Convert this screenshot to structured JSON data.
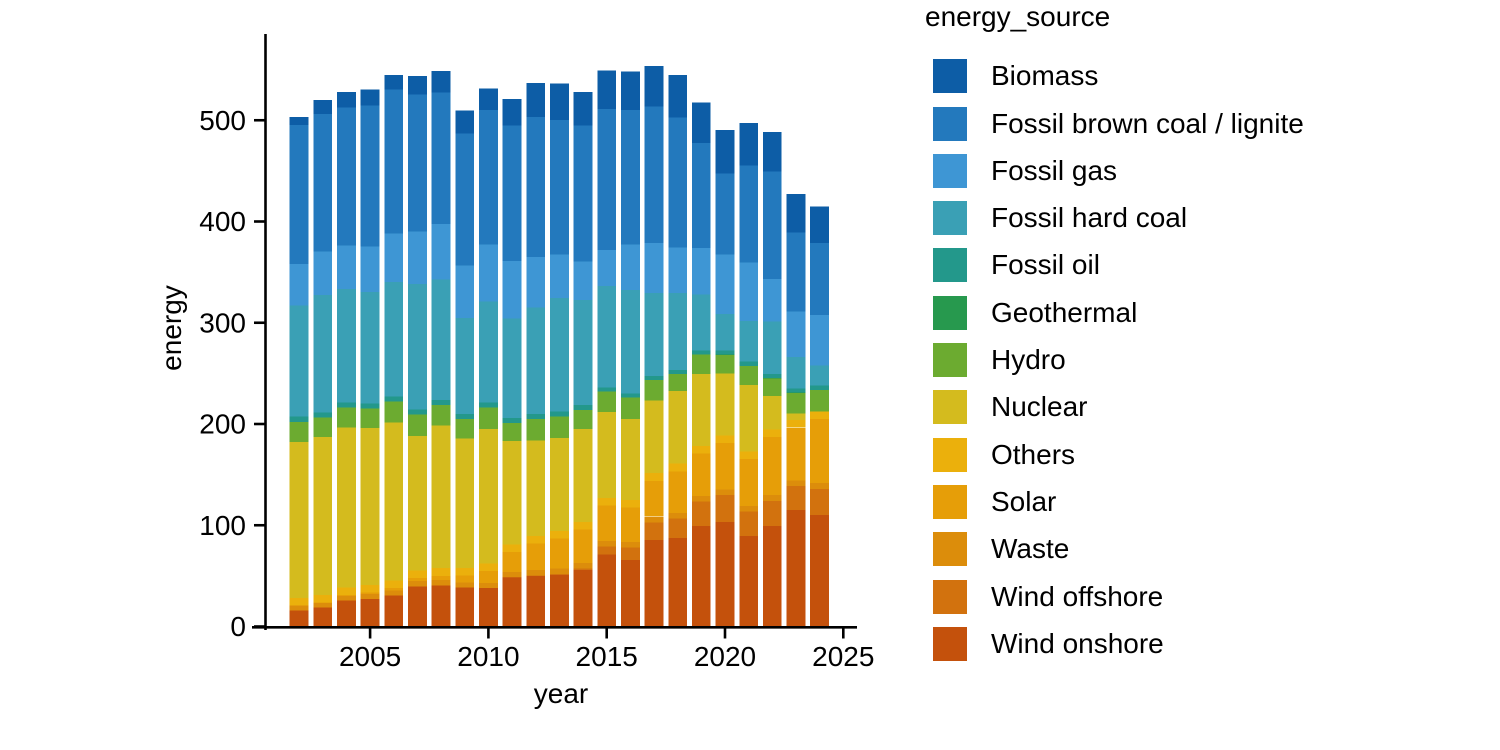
{
  "figure": {
    "background": "#ffffff",
    "text_color": "#000000",
    "axis_color": "#000000"
  },
  "chart_data": {
    "type": "bar",
    "stacked": true,
    "title": "",
    "xlabel": "year",
    "ylabel": "energy",
    "legend_title": "energy_source",
    "legend_position": "right",
    "grid": false,
    "ylim": [
      0,
      560
    ],
    "xlim": [
      2001.4,
      2025.6
    ],
    "y_ticks": [
      "0",
      "100",
      "200",
      "300",
      "400",
      "500"
    ],
    "y_tick_values": [
      0,
      100,
      200,
      300,
      400,
      500
    ],
    "x_ticks": [
      "2005",
      "2010",
      "2015",
      "2020",
      "2025"
    ],
    "x_tick_values": [
      2005,
      2010,
      2015,
      2020,
      2025
    ],
    "years": [
      2002,
      2003,
      2004,
      2005,
      2006,
      2007,
      2008,
      2009,
      2010,
      2011,
      2012,
      2013,
      2014,
      2015,
      2016,
      2017,
      2018,
      2019,
      2020,
      2021,
      2022,
      2023,
      2024
    ],
    "legend_order_top_to_bottom": [
      "Biomass",
      "Fossil brown coal / lignite",
      "Fossil gas",
      "Fossil hard coal",
      "Fossil oil",
      "Geothermal",
      "Hydro",
      "Nuclear",
      "Others",
      "Solar",
      "Waste",
      "Wind offshore",
      "Wind onshore"
    ],
    "series_bottom_to_top": [
      {
        "name": "Wind onshore",
        "color": "#c4510c",
        "values": [
          16,
          18.7,
          25.5,
          27.2,
          30.7,
          39.7,
          40.6,
          38.6,
          37.8,
          48.3,
          49.9,
          50.8,
          55.9,
          70.9,
          65.9,
          85.5,
          87.4,
          99.2,
          103.1,
          89.5,
          99.5,
          115.3,
          110.3
        ]
      },
      {
        "name": "Wind offshore",
        "color": "#d2720e",
        "values": [
          0,
          0,
          0,
          0,
          0,
          0,
          0,
          0,
          0.2,
          0.6,
          0.7,
          0.9,
          1.4,
          8.2,
          12.1,
          17.4,
          19.1,
          24.4,
          26.9,
          24.1,
          24.7,
          23.5,
          25.7
        ]
      },
      {
        "name": "Waste",
        "color": "#dc8d0b",
        "values": [
          4.5,
          4.7,
          4.8,
          4.9,
          5,
          5,
          5.1,
          5.1,
          5,
          5,
          5,
          5.4,
          5.5,
          5.5,
          5.5,
          5.5,
          5.5,
          5.5,
          5.5,
          5.5,
          5.5,
          5.5,
          5.5
        ]
      },
      {
        "name": "Solar",
        "color": "#e69e08",
        "values": [
          0.2,
          0.3,
          0.6,
          1.3,
          2.2,
          3.1,
          4.4,
          6.6,
          11.7,
          19.6,
          26.4,
          29.7,
          32.8,
          34.9,
          34,
          35.5,
          41.3,
          41.9,
          45.8,
          46.3,
          57.6,
          52,
          63.3
        ]
      },
      {
        "name": "Others",
        "color": "#ebb00c",
        "values": [
          7.5,
          7.5,
          7.5,
          7.5,
          7.5,
          7.5,
          7.5,
          7.5,
          7.5,
          7.5,
          7.5,
          7.5,
          7.5,
          7.5,
          7.5,
          7.5,
          7.5,
          7.5,
          7.5,
          7.5,
          7.5,
          7.5,
          7.5
        ]
      },
      {
        "name": "Nuclear",
        "color": "#d4bb1e",
        "values": [
          154,
          156,
          158,
          155,
          156,
          133,
          141,
          128,
          133,
          102,
          94,
          92,
          92,
          85,
          80,
          72,
          72,
          71,
          61,
          65.4,
          32.8,
          6.7,
          0
        ]
      },
      {
        "name": "Hydro",
        "color": "#6cab30",
        "values": [
          20,
          19,
          20,
          19.5,
          21,
          21,
          20,
          19,
          21,
          18,
          21.5,
          21,
          18.5,
          20,
          21,
          20,
          16.5,
          19,
          18.5,
          19,
          17.5,
          20.3,
          21.3
        ]
      },
      {
        "name": "Geothermal",
        "color": "#27994e",
        "values": [
          0,
          0,
          0,
          0,
          0,
          0,
          0,
          0,
          0,
          0,
          0,
          0,
          0.1,
          0.1,
          0.2,
          0.2,
          0.2,
          0.2,
          0.2,
          0.2,
          0.2,
          0.2,
          0.2
        ]
      },
      {
        "name": "Fossil oil",
        "color": "#23988b",
        "values": [
          5,
          5,
          5,
          5,
          5,
          5,
          5,
          5,
          5,
          5,
          5,
          5,
          5,
          4,
          4,
          4,
          4,
          4,
          4,
          4,
          4,
          4,
          4
        ]
      },
      {
        "name": "Fossil hard coal",
        "color": "#3aa0b5",
        "values": [
          110,
          116,
          112,
          110,
          113,
          124,
          119,
          95,
          100,
          98,
          105,
          112,
          104,
          100,
          102,
          82,
          76,
          55,
          36,
          40,
          52,
          31,
          20
        ]
      },
      {
        "name": "Fossil gas",
        "color": "#3e96d4",
        "values": [
          41,
          43,
          43,
          45,
          48,
          52,
          55,
          52,
          56,
          57,
          50,
          43,
          38,
          36,
          45,
          49,
          45,
          46,
          59,
          58,
          42,
          45,
          50
        ]
      },
      {
        "name": "Fossil brown coal / lignite",
        "color": "#2379bd",
        "values": [
          137,
          136,
          136,
          139,
          142,
          135,
          130,
          130,
          133,
          134,
          138,
          133,
          134,
          139,
          133,
          135,
          128,
          104,
          80,
          96,
          106,
          78,
          71
        ]
      },
      {
        "name": "Biomass",
        "color": "#0d5da6",
        "values": [
          8,
          14,
          15.5,
          16,
          14.5,
          18.5,
          21,
          23,
          21,
          26,
          34,
          36,
          33,
          38,
          38,
          40,
          42,
          40,
          43,
          42,
          39,
          38,
          36
        ]
      }
    ]
  }
}
